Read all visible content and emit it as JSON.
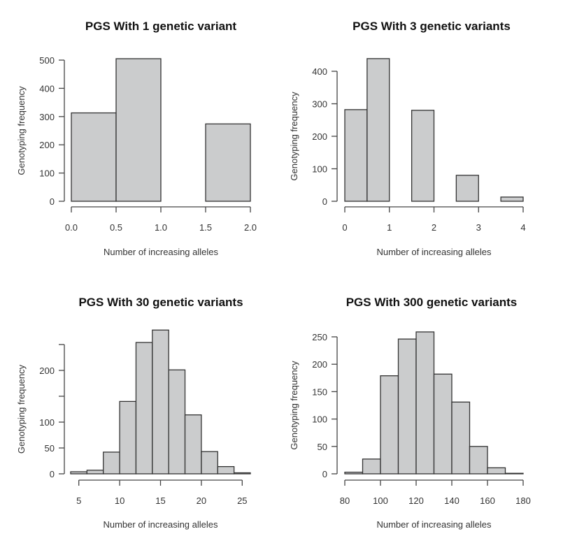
{
  "chart_data": [
    {
      "type": "bar",
      "title": "PGS With 1 genetic variant",
      "xlabel": "Number of increasing alleles",
      "ylabel": "Genotyping frequency",
      "bin_edges": [
        0,
        0.5,
        1.0,
        1.5,
        2.0
      ],
      "values": [
        313,
        505,
        0,
        274
      ],
      "xticks": [
        "0.0",
        "0.5",
        "1.0",
        "1.5",
        "2.0"
      ],
      "xtick_values": [
        0,
        0.5,
        1.0,
        1.5,
        2.0
      ],
      "yticks": [
        "0",
        "100",
        "200",
        "300",
        "400",
        "500"
      ],
      "ytick_values": [
        0,
        100,
        200,
        300,
        400,
        500
      ],
      "xlim": [
        0,
        2
      ],
      "ylim": [
        0,
        500
      ],
      "grid": false
    },
    {
      "type": "bar",
      "title": "PGS With 3 genetic variants",
      "xlabel": "Number of increasing alleles",
      "ylabel": "Genotyping frequency",
      "bin_edges": [
        0,
        0.5,
        1,
        1.5,
        2,
        2.5,
        3,
        3.5,
        4
      ],
      "values": [
        282,
        439,
        0,
        280,
        0,
        80,
        0,
        13
      ],
      "xticks": [
        "0",
        "1",
        "2",
        "3",
        "4"
      ],
      "xtick_values": [
        0,
        1,
        2,
        3,
        4
      ],
      "yticks": [
        "0",
        "100",
        "200",
        "300",
        "400"
      ],
      "ytick_values": [
        0,
        100,
        200,
        300,
        400
      ],
      "xlim": [
        0,
        4
      ],
      "ylim": [
        0,
        400
      ],
      "grid": false
    },
    {
      "type": "bar",
      "title": "PGS With 30 genetic variants",
      "xlabel": "Number of increasing alleles",
      "ylabel": "Genotyping frequency",
      "bin_edges": [
        4,
        6,
        8,
        10,
        12,
        14,
        16,
        18,
        20,
        22,
        24,
        26
      ],
      "values": [
        4,
        7,
        42,
        140,
        254,
        278,
        201,
        114,
        43,
        14,
        2
      ],
      "xticks": [
        "5",
        "10",
        "15",
        "20",
        "25"
      ],
      "xtick_values": [
        5,
        10,
        15,
        20,
        25
      ],
      "yticks": [
        "0",
        "50",
        "100",
        "",
        "200",
        ""
      ],
      "ytick_values": [
        0,
        50,
        100,
        150,
        200,
        250
      ],
      "xlim": [
        4,
        26
      ],
      "ylim": [
        0,
        250
      ],
      "grid": false
    },
    {
      "type": "bar",
      "title": "PGS With 300 genetic variants",
      "xlabel": "Number of increasing alleles",
      "ylabel": "Genotyping frequency",
      "bin_edges": [
        80,
        90,
        100,
        110,
        120,
        130,
        140,
        150,
        160,
        170,
        180
      ],
      "values": [
        3,
        27,
        179,
        246,
        259,
        182,
        131,
        50,
        11,
        1
      ],
      "xticks": [
        "80",
        "100",
        "120",
        "140",
        "160",
        "180"
      ],
      "xtick_values": [
        80,
        100,
        120,
        140,
        160,
        180
      ],
      "yticks": [
        "0",
        "50",
        "100",
        "150",
        "200",
        "250"
      ],
      "ytick_values": [
        0,
        50,
        100,
        150,
        200,
        250
      ],
      "xlim": [
        80,
        180
      ],
      "ylim": [
        0,
        250
      ],
      "grid": false
    }
  ],
  "colors": {
    "bar_fill": "#cbcccd",
    "bar_stroke": "#333333"
  }
}
